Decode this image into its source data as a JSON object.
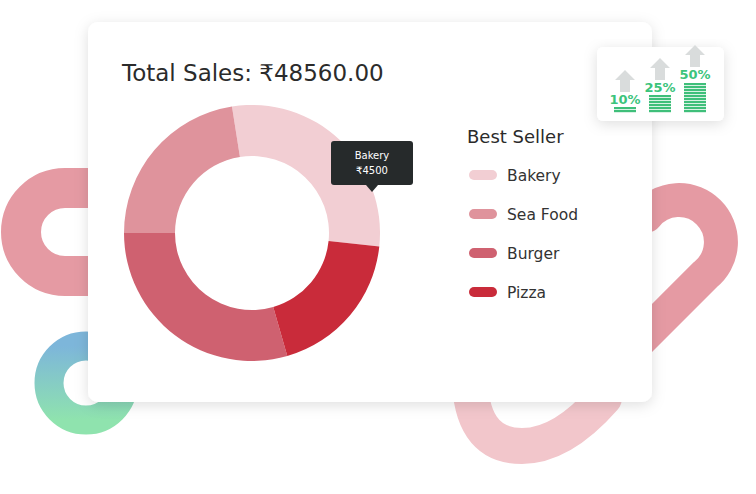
{
  "chart_data": {
    "type": "donut",
    "title": "Total Sales: ₹48560.00",
    "legend_title": "Best Seller",
    "categories": [
      "Bakery",
      "Sea Food",
      "Burger",
      "Pizza"
    ],
    "values": [
      4500,
      3471,
      4543,
      2914
    ],
    "value_labels": [
      "₹4500",
      null,
      null,
      null
    ],
    "colors": [
      "#f2ced3",
      "#df939c",
      "#cf6170",
      "#c92b3a"
    ],
    "legend": "right",
    "annotations": [
      "10%",
      "25%",
      "50%"
    ]
  }
}
